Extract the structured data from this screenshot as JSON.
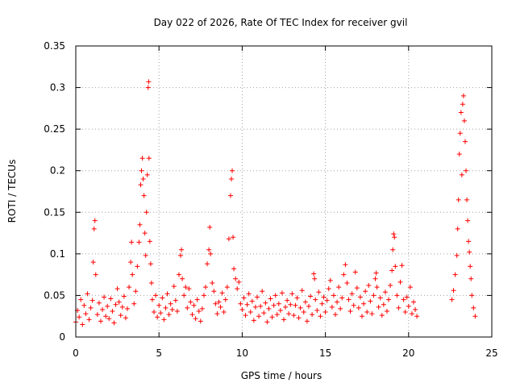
{
  "chart_data": {
    "type": "scatter",
    "title": "Day 022 of 2026, Rate Of TEC Index for receiver gvil",
    "xlabel": "GPS time / hours",
    "ylabel": "ROTI / TECUs",
    "xlim": [
      0,
      25
    ],
    "ylim": [
      0,
      0.35
    ],
    "x_ticks": [
      "0",
      "5",
      "10",
      "15",
      "20",
      "25"
    ],
    "y_ticks": [
      "0",
      "0.05",
      "0.1",
      "0.15",
      "0.2",
      "0.25",
      "0.3",
      "0.35"
    ],
    "grid": true,
    "legend": "none",
    "marker": "plus",
    "color": "#ff0000",
    "series": [
      {
        "points": [
          [
            0.0,
            0.018
          ],
          [
            0.1,
            0.032
          ],
          [
            0.2,
            0.024
          ],
          [
            0.3,
            0.045
          ],
          [
            0.4,
            0.015
          ],
          [
            0.5,
            0.038
          ],
          [
            0.6,
            0.028
          ],
          [
            0.7,
            0.052
          ],
          [
            0.8,
            0.021
          ],
          [
            0.9,
            0.035
          ],
          [
            1.0,
            0.044
          ],
          [
            1.05,
            0.09
          ],
          [
            1.1,
            0.13
          ],
          [
            1.15,
            0.14
          ],
          [
            1.2,
            0.075
          ],
          [
            1.3,
            0.027
          ],
          [
            1.4,
            0.041
          ],
          [
            1.5,
            0.019
          ],
          [
            1.6,
            0.033
          ],
          [
            1.7,
            0.048
          ],
          [
            1.8,
            0.025
          ],
          [
            1.9,
            0.037
          ],
          [
            2.0,
            0.022
          ],
          [
            2.1,
            0.046
          ],
          [
            2.2,
            0.031
          ],
          [
            2.3,
            0.017
          ],
          [
            2.4,
            0.039
          ],
          [
            2.5,
            0.058
          ],
          [
            2.6,
            0.042
          ],
          [
            2.7,
            0.026
          ],
          [
            2.8,
            0.036
          ],
          [
            2.9,
            0.049
          ],
          [
            3.0,
            0.023
          ],
          [
            3.1,
            0.034
          ],
          [
            3.2,
            0.06
          ],
          [
            3.3,
            0.09
          ],
          [
            3.35,
            0.114
          ],
          [
            3.4,
            0.075
          ],
          [
            3.5,
            0.04
          ],
          [
            3.6,
            0.055
          ],
          [
            3.7,
            0.085
          ],
          [
            3.8,
            0.114
          ],
          [
            3.85,
            0.135
          ],
          [
            3.9,
            0.183
          ],
          [
            3.95,
            0.2
          ],
          [
            4.0,
            0.215
          ],
          [
            4.05,
            0.19
          ],
          [
            4.1,
            0.17
          ],
          [
            4.15,
            0.125
          ],
          [
            4.2,
            0.098
          ],
          [
            4.25,
            0.15
          ],
          [
            4.3,
            0.195
          ],
          [
            4.35,
            0.3
          ],
          [
            4.38,
            0.307
          ],
          [
            4.4,
            0.215
          ],
          [
            4.45,
            0.115
          ],
          [
            4.5,
            0.088
          ],
          [
            4.55,
            0.065
          ],
          [
            4.6,
            0.045
          ],
          [
            4.7,
            0.03
          ],
          [
            4.8,
            0.05
          ],
          [
            4.9,
            0.024
          ],
          [
            5.0,
            0.038
          ],
          [
            5.1,
            0.029
          ],
          [
            5.2,
            0.047
          ],
          [
            5.3,
            0.021
          ],
          [
            5.4,
            0.035
          ],
          [
            5.5,
            0.052
          ],
          [
            5.6,
            0.027
          ],
          [
            5.7,
            0.04
          ],
          [
            5.8,
            0.033
          ],
          [
            5.9,
            0.061
          ],
          [
            6.0,
            0.044
          ],
          [
            6.1,
            0.031
          ],
          [
            6.2,
            0.075
          ],
          [
            6.3,
            0.098
          ],
          [
            6.35,
            0.105
          ],
          [
            6.4,
            0.07
          ],
          [
            6.5,
            0.05
          ],
          [
            6.6,
            0.06
          ],
          [
            6.7,
            0.035
          ],
          [
            6.8,
            0.058
          ],
          [
            6.9,
            0.042
          ],
          [
            7.0,
            0.027
          ],
          [
            7.1,
            0.038
          ],
          [
            7.2,
            0.022
          ],
          [
            7.3,
            0.045
          ],
          [
            7.4,
            0.031
          ],
          [
            7.5,
            0.019
          ],
          [
            7.6,
            0.034
          ],
          [
            7.7,
            0.05
          ],
          [
            7.8,
            0.06
          ],
          [
            7.9,
            0.088
          ],
          [
            8.0,
            0.105
          ],
          [
            8.05,
            0.132
          ],
          [
            8.1,
            0.1
          ],
          [
            8.2,
            0.065
          ],
          [
            8.3,
            0.055
          ],
          [
            8.4,
            0.04
          ],
          [
            8.5,
            0.028
          ],
          [
            8.6,
            0.042
          ],
          [
            8.7,
            0.036
          ],
          [
            8.8,
            0.053
          ],
          [
            8.9,
            0.03
          ],
          [
            9.0,
            0.045
          ],
          [
            9.1,
            0.06
          ],
          [
            9.2,
            0.118
          ],
          [
            9.3,
            0.17
          ],
          [
            9.35,
            0.19
          ],
          [
            9.4,
            0.2
          ],
          [
            9.45,
            0.12
          ],
          [
            9.5,
            0.082
          ],
          [
            9.6,
            0.07
          ],
          [
            9.7,
            0.058
          ],
          [
            9.8,
            0.066
          ],
          [
            9.9,
            0.04
          ],
          [
            10.0,
            0.033
          ],
          [
            10.1,
            0.047
          ],
          [
            10.2,
            0.026
          ],
          [
            10.3,
            0.039
          ],
          [
            10.4,
            0.052
          ],
          [
            10.5,
            0.03
          ],
          [
            10.6,
            0.043
          ],
          [
            10.7,
            0.02
          ],
          [
            10.8,
            0.036
          ],
          [
            10.9,
            0.048
          ],
          [
            11.0,
            0.025
          ],
          [
            11.1,
            0.037
          ],
          [
            11.2,
            0.055
          ],
          [
            11.3,
            0.029
          ],
          [
            11.4,
            0.041
          ],
          [
            11.5,
            0.018
          ],
          [
            11.6,
            0.034
          ],
          [
            11.7,
            0.046
          ],
          [
            11.8,
            0.024
          ],
          [
            11.9,
            0.038
          ],
          [
            12.0,
            0.05
          ],
          [
            12.1,
            0.027
          ],
          [
            12.2,
            0.04
          ],
          [
            12.3,
            0.032
          ],
          [
            12.4,
            0.053
          ],
          [
            12.5,
            0.021
          ],
          [
            12.6,
            0.036
          ],
          [
            12.7,
            0.044
          ],
          [
            12.8,
            0.028
          ],
          [
            12.9,
            0.039
          ],
          [
            13.0,
            0.052
          ],
          [
            13.1,
            0.026
          ],
          [
            13.2,
            0.038
          ],
          [
            13.3,
            0.047
          ],
          [
            13.4,
            0.023
          ],
          [
            13.5,
            0.035
          ],
          [
            13.6,
            0.056
          ],
          [
            13.7,
            0.03
          ],
          [
            13.8,
            0.042
          ],
          [
            13.9,
            0.019
          ],
          [
            14.0,
            0.037
          ],
          [
            14.1,
            0.049
          ],
          [
            14.2,
            0.027
          ],
          [
            14.3,
            0.076
          ],
          [
            14.35,
            0.07
          ],
          [
            14.4,
            0.045
          ],
          [
            14.5,
            0.032
          ],
          [
            14.6,
            0.054
          ],
          [
            14.7,
            0.025
          ],
          [
            14.8,
            0.04
          ],
          [
            14.9,
            0.048
          ],
          [
            15.0,
            0.03
          ],
          [
            15.1,
            0.044
          ],
          [
            15.2,
            0.058
          ],
          [
            15.3,
            0.068
          ],
          [
            15.4,
            0.036
          ],
          [
            15.5,
            0.05
          ],
          [
            15.6,
            0.027
          ],
          [
            15.7,
            0.042
          ],
          [
            15.8,
            0.06
          ],
          [
            15.9,
            0.034
          ],
          [
            16.0,
            0.047
          ],
          [
            16.1,
            0.075
          ],
          [
            16.2,
            0.087
          ],
          [
            16.3,
            0.065
          ],
          [
            16.4,
            0.045
          ],
          [
            16.5,
            0.031
          ],
          [
            16.6,
            0.052
          ],
          [
            16.7,
            0.038
          ],
          [
            16.8,
            0.078
          ],
          [
            16.9,
            0.059
          ],
          [
            17.0,
            0.035
          ],
          [
            17.1,
            0.048
          ],
          [
            17.2,
            0.025
          ],
          [
            17.3,
            0.04
          ],
          [
            17.4,
            0.055
          ],
          [
            17.5,
            0.03
          ],
          [
            17.6,
            0.062
          ],
          [
            17.7,
            0.043
          ],
          [
            17.8,
            0.028
          ],
          [
            17.9,
            0.05
          ],
          [
            18.0,
            0.07
          ],
          [
            18.05,
            0.077
          ],
          [
            18.1,
            0.06
          ],
          [
            18.2,
            0.036
          ],
          [
            18.3,
            0.047
          ],
          [
            18.4,
            0.026
          ],
          [
            18.5,
            0.039
          ],
          [
            18.6,
            0.054
          ],
          [
            18.7,
            0.031
          ],
          [
            18.8,
            0.045
          ],
          [
            18.9,
            0.062
          ],
          [
            19.0,
            0.08
          ],
          [
            19.05,
            0.105
          ],
          [
            19.1,
            0.124
          ],
          [
            19.15,
            0.12
          ],
          [
            19.2,
            0.085
          ],
          [
            19.3,
            0.05
          ],
          [
            19.4,
            0.035
          ],
          [
            19.5,
            0.066
          ],
          [
            19.6,
            0.086
          ],
          [
            19.7,
            0.045
          ],
          [
            19.8,
            0.03
          ],
          [
            19.9,
            0.048
          ],
          [
            20.0,
            0.037
          ],
          [
            20.1,
            0.06
          ],
          [
            20.2,
            0.028
          ],
          [
            20.3,
            0.042
          ],
          [
            20.4,
            0.033
          ],
          [
            20.5,
            0.025
          ],
          [
            22.6,
            0.045
          ],
          [
            22.7,
            0.056
          ],
          [
            22.8,
            0.075
          ],
          [
            22.9,
            0.098
          ],
          [
            22.95,
            0.13
          ],
          [
            23.0,
            0.165
          ],
          [
            23.05,
            0.22
          ],
          [
            23.1,
            0.245
          ],
          [
            23.15,
            0.27
          ],
          [
            23.2,
            0.195
          ],
          [
            23.25,
            0.28
          ],
          [
            23.3,
            0.29
          ],
          [
            23.35,
            0.26
          ],
          [
            23.4,
            0.235
          ],
          [
            23.45,
            0.2
          ],
          [
            23.5,
            0.165
          ],
          [
            23.55,
            0.14
          ],
          [
            23.6,
            0.115
          ],
          [
            23.65,
            0.102
          ],
          [
            23.7,
            0.085
          ],
          [
            23.75,
            0.07
          ],
          [
            23.8,
            0.05
          ],
          [
            23.9,
            0.035
          ],
          [
            24.0,
            0.025
          ]
        ]
      }
    ]
  }
}
